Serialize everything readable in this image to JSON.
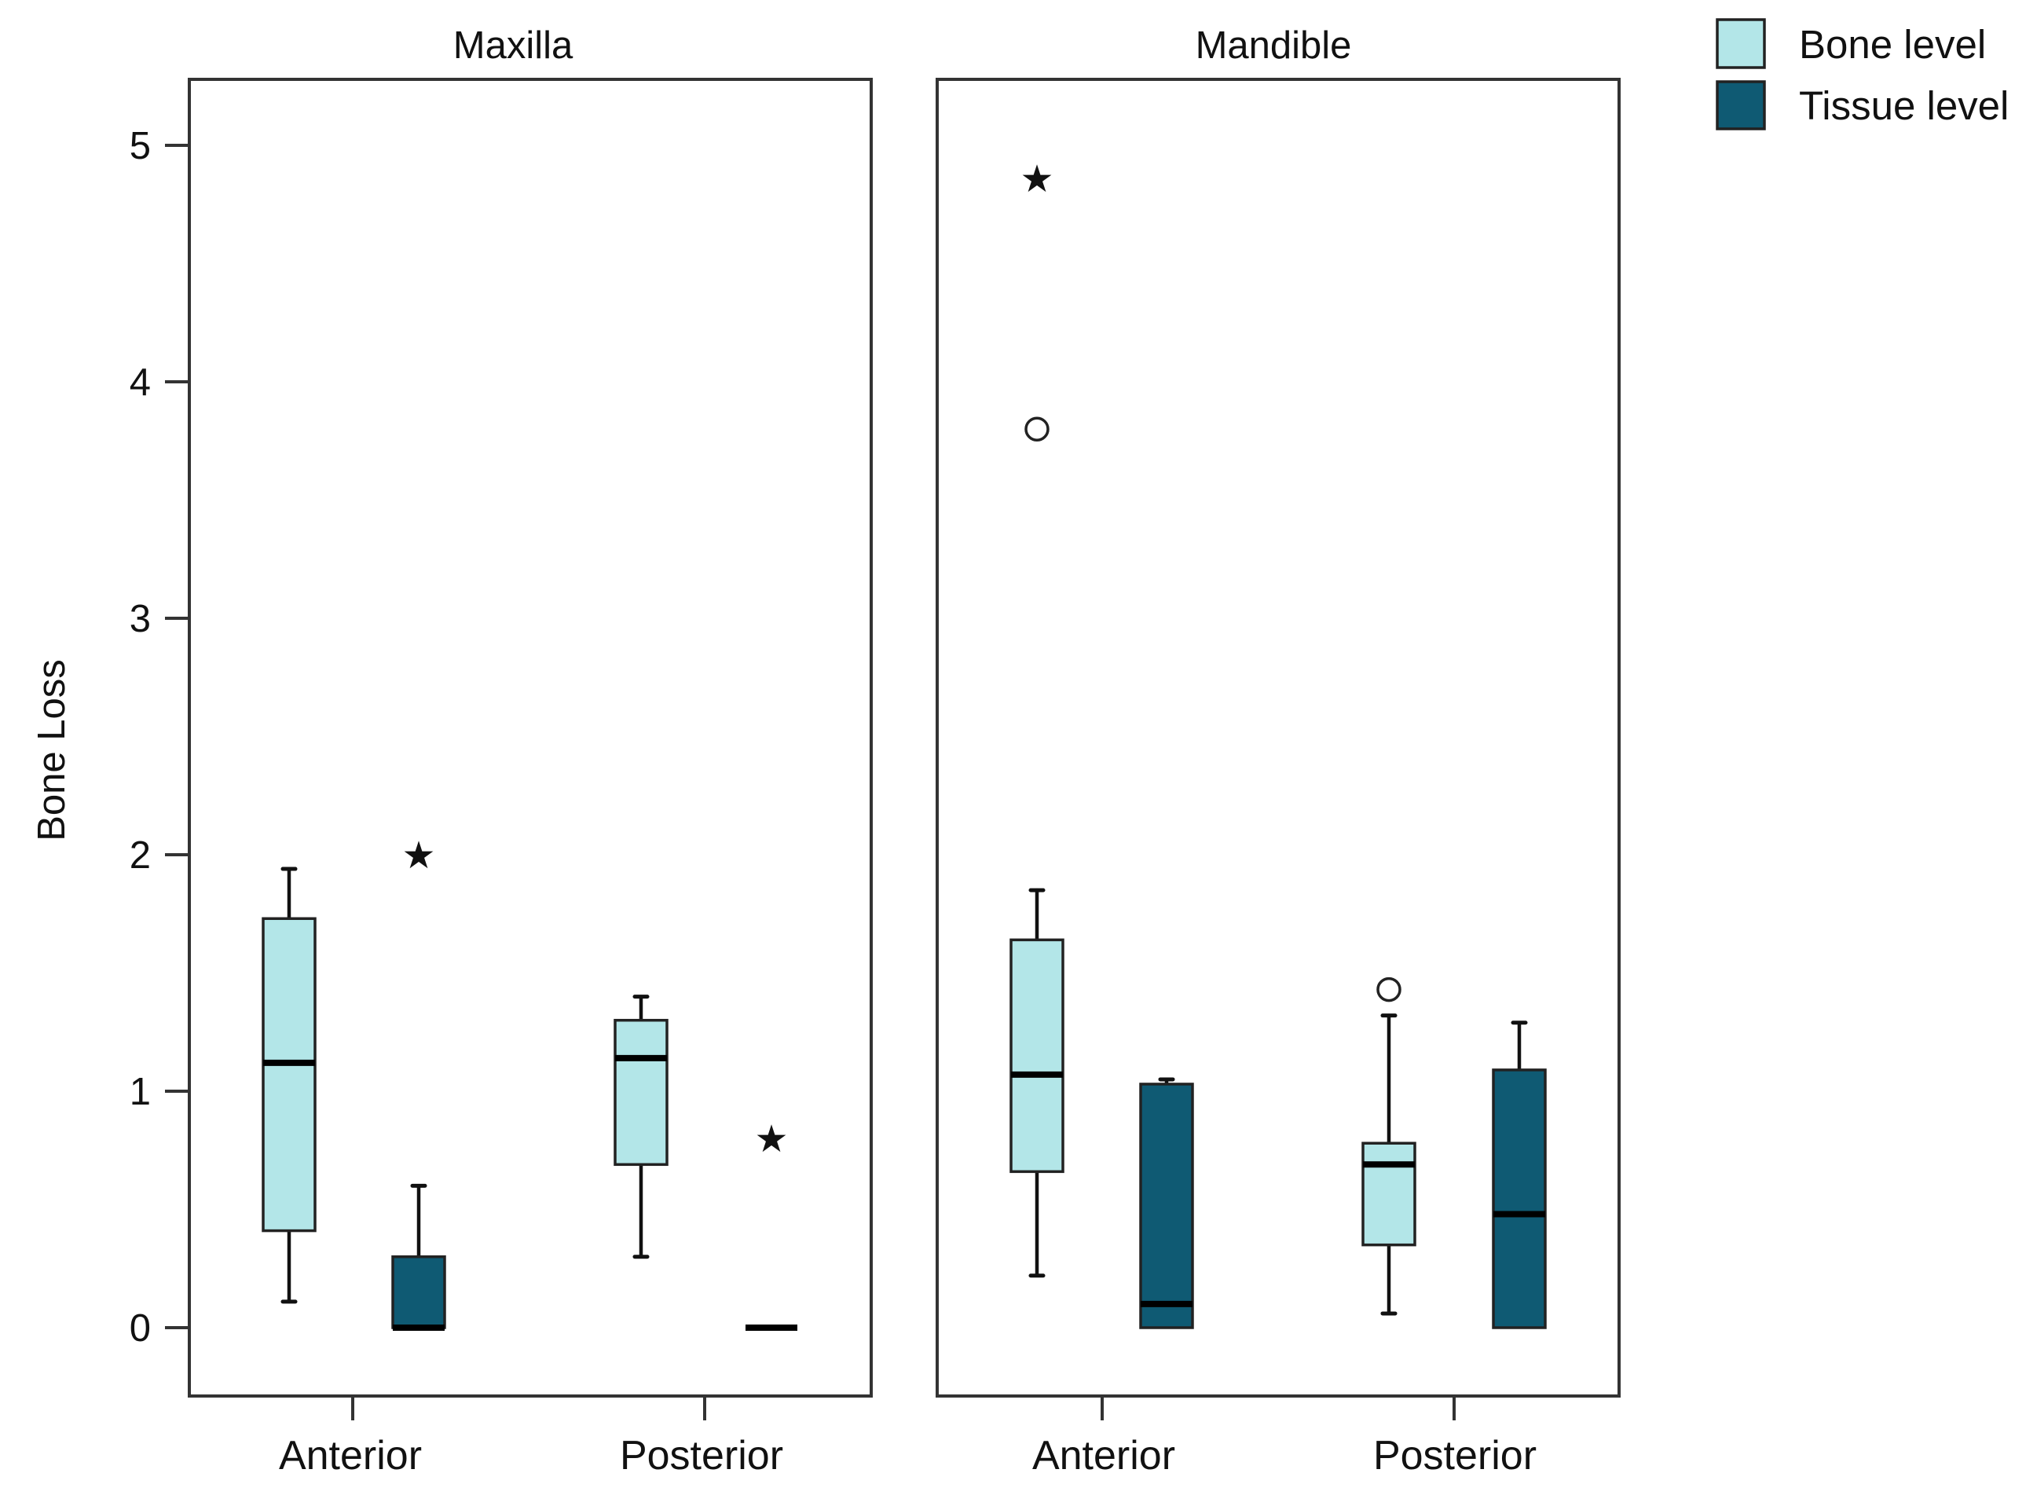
{
  "chart_data": {
    "type": "boxplot",
    "ylabel": "Bone Loss",
    "ylim": [
      -0.28,
      5.28
    ],
    "yticks": [
      0,
      1,
      2,
      3,
      4,
      5
    ],
    "categories": [
      "Anterior",
      "Posterior"
    ],
    "legend_position": "top-right",
    "series": [
      {
        "key": "bone",
        "name": "Bone level",
        "color": "#b3e6e8"
      },
      {
        "key": "tissue",
        "name": "Tissue level",
        "color": "#0f5a73"
      }
    ],
    "panels": [
      {
        "title": "Maxilla",
        "boxes": [
          {
            "category": "Anterior",
            "series": "bone",
            "min": 0.11,
            "q1": 0.41,
            "median": 1.12,
            "q3": 1.73,
            "max": 1.94,
            "outliers": []
          },
          {
            "category": "Anterior",
            "series": "tissue",
            "min": 0.0,
            "q1": 0.0,
            "median": 0.0,
            "q3": 0.3,
            "max": 0.6,
            "outliers": [
              {
                "value": 2.0,
                "marker": "star"
              }
            ]
          },
          {
            "category": "Posterior",
            "series": "bone",
            "min": 0.3,
            "q1": 0.69,
            "median": 1.14,
            "q3": 1.3,
            "max": 1.4,
            "outliers": []
          },
          {
            "category": "Posterior",
            "series": "tissue",
            "min": 0.0,
            "q1": 0.0,
            "median": 0.0,
            "q3": 0.0,
            "max": 0.0,
            "outliers": [
              {
                "value": 0.8,
                "marker": "star"
              }
            ]
          }
        ]
      },
      {
        "title": "Mandible",
        "boxes": [
          {
            "category": "Anterior",
            "series": "bone",
            "min": 0.22,
            "q1": 0.66,
            "median": 1.07,
            "q3": 1.64,
            "max": 1.85,
            "outliers": [
              {
                "value": 3.8,
                "marker": "circle"
              },
              {
                "value": 4.86,
                "marker": "star"
              }
            ]
          },
          {
            "category": "Anterior",
            "series": "tissue",
            "min": 0.0,
            "q1": 0.0,
            "median": 0.1,
            "q3": 1.03,
            "max": 1.05,
            "outliers": []
          },
          {
            "category": "Posterior",
            "series": "bone",
            "min": 0.06,
            "q1": 0.35,
            "median": 0.69,
            "q3": 0.78,
            "max": 1.32,
            "outliers": [
              {
                "value": 1.43,
                "marker": "circle"
              }
            ]
          },
          {
            "category": "Posterior",
            "series": "tissue",
            "min": 0.0,
            "q1": 0.0,
            "median": 0.48,
            "q3": 1.09,
            "max": 1.29,
            "outliers": []
          }
        ]
      }
    ]
  }
}
